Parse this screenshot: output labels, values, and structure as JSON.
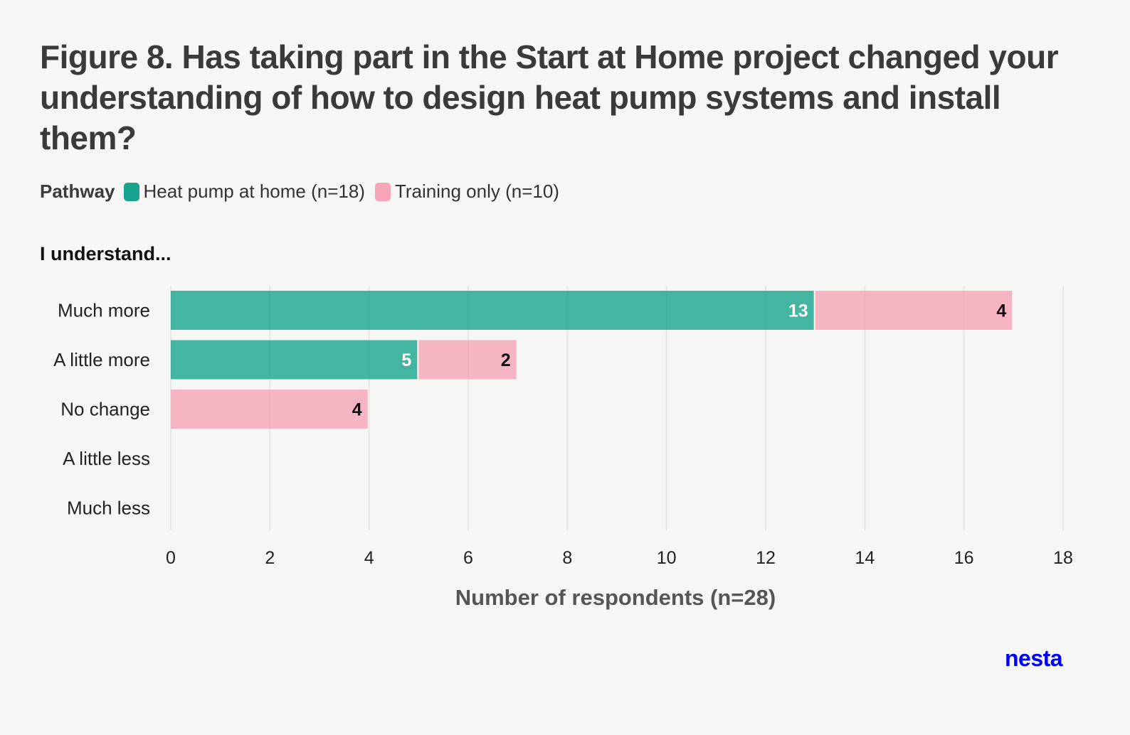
{
  "chart_data": {
    "type": "bar",
    "orientation": "horizontal",
    "stacked": true,
    "title": "Figure 8. Has taking part in the Start at Home project changed your understanding of how to design heat pump systems and install them?",
    "legend_title": "Pathway",
    "legend_placement": "top-left",
    "ylabel": "I understand...",
    "xlabel": "Number of respondents (n=28)",
    "categories": [
      "Much more",
      "A little more",
      "No change",
      "A little less",
      "Much less"
    ],
    "series": [
      {
        "name": "Heat pump at home (n=18)",
        "color": "#18a48c",
        "values": [
          13,
          5,
          0,
          0,
          0
        ]
      },
      {
        "name": "Training only (n=10)",
        "color": "#f6a4b7",
        "values": [
          4,
          2,
          4,
          0,
          0
        ]
      }
    ],
    "xlim": [
      0,
      18
    ],
    "xticks": [
      0,
      2,
      4,
      6,
      8,
      10,
      12,
      14,
      16,
      18
    ],
    "grid": true
  },
  "logo": {
    "text": "nesta",
    "color": "#0000ff"
  }
}
